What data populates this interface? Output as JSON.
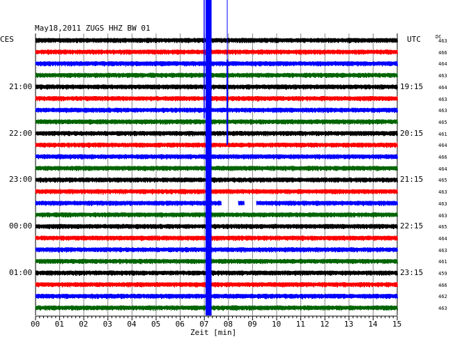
{
  "header": {
    "title": "May18,2011   ZUGS HHZ BW 01",
    "left_label": "CES",
    "right_label": "UTC",
    "dc_label": "DC"
  },
  "chart_data": {
    "type": "line",
    "title": "May18,2011   ZUGS HHZ BW 01",
    "xlabel": "Zeit [min]",
    "xlim": [
      0,
      15
    ],
    "x_ticks": [
      "00",
      "01",
      "02",
      "03",
      "04",
      "05",
      "06",
      "07",
      "08",
      "09",
      "10",
      "11",
      "12",
      "13",
      "14",
      "15"
    ],
    "trace_colors": [
      "#000000",
      "#ff0000",
      "#0000ff",
      "#006400"
    ],
    "local_time_labels": [
      {
        "row": 4,
        "label": "21:00"
      },
      {
        "row": 8,
        "label": "22:00"
      },
      {
        "row": 12,
        "label": "23:00"
      },
      {
        "row": 16,
        "label": "00:00"
      },
      {
        "row": 20,
        "label": "01:00"
      }
    ],
    "utc_time_labels": [
      {
        "row": 4,
        "label": "19:15"
      },
      {
        "row": 8,
        "label": "20:15"
      },
      {
        "row": 12,
        "label": "21:15"
      },
      {
        "row": 16,
        "label": "22:15"
      },
      {
        "row": 20,
        "label": "23:15"
      }
    ],
    "dc_offsets": [
      463,
      466,
      464,
      463,
      464,
      463,
      463,
      465,
      461,
      464,
      466,
      464,
      465,
      463,
      463,
      463,
      465,
      464,
      463,
      461,
      459,
      466,
      462,
      463
    ],
    "events": [
      {
        "name": "earthquake",
        "minute_start": 7.05,
        "minute_end": 7.3
      },
      {
        "name": "spike",
        "minute": 7.95,
        "rows": [
          2,
          9
        ]
      }
    ],
    "gaps": [
      {
        "row": 14,
        "minute_start": 7.7,
        "minute_end": 8.4
      },
      {
        "row": 14,
        "minute_start": 8.65,
        "minute_end": 9.15
      }
    ]
  }
}
